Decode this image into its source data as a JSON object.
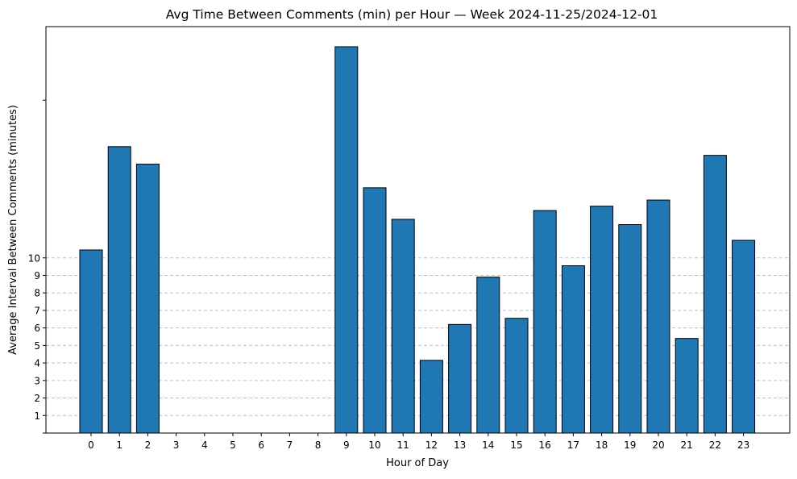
{
  "chart_data": {
    "type": "bar",
    "title": "Avg Time Between Comments (min) per Hour — Week 2024-11-25/2024-12-01",
    "xlabel": "Hour of Day",
    "ylabel": "Average Interval Between Comments (minutes)",
    "categories": [
      "0",
      "1",
      "2",
      "3",
      "4",
      "5",
      "6",
      "7",
      "8",
      "9",
      "10",
      "11",
      "12",
      "13",
      "14",
      "15",
      "16",
      "17",
      "18",
      "19",
      "20",
      "21",
      "22",
      "23"
    ],
    "values": [
      10.45,
      16.35,
      15.35,
      0,
      0,
      0,
      0,
      0,
      0,
      22.05,
      14.0,
      12.2,
      4.15,
      6.2,
      8.9,
      6.55,
      12.7,
      9.55,
      12.95,
      11.9,
      13.3,
      5.4,
      15.85,
      11.0
    ],
    "yticks": [
      1,
      2,
      3,
      4,
      5,
      6,
      7,
      8,
      9,
      10
    ],
    "ylim": [
      0,
      23.2
    ],
    "grid": "horizontal dashed",
    "colors": {
      "bar_fill": "#1f77b4",
      "bar_edge": "#000000",
      "grid": "#c0c0c0"
    }
  }
}
